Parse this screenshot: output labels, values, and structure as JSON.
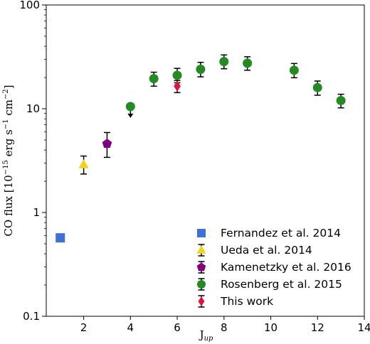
{
  "chart_data": {
    "type": "scatter",
    "title": "",
    "xlabel": "J",
    "xlabel_sub": "up",
    "ylabel": "CO flux [10",
    "ylabel_exp1": "−15",
    "ylabel_mid": " erg s",
    "ylabel_exp2": "−1",
    "ylabel_mid2": " cm",
    "ylabel_exp3": "−2",
    "ylabel_end": "]",
    "xlim": [
      0.4,
      14
    ],
    "ylim": [
      0.1,
      100
    ],
    "yscale": "log",
    "x_ticks": [
      2,
      4,
      6,
      8,
      10,
      12,
      14
    ],
    "y_ticks": [
      0.1,
      1,
      10,
      100
    ],
    "y_tick_labels": [
      "0.1",
      "1",
      "10",
      "100"
    ],
    "grid": false,
    "legend_position": "lower-right",
    "series": [
      {
        "name": "Fernandez et al. 2014",
        "marker": "square",
        "color": "#3d70d8",
        "points": [
          {
            "x": 1,
            "y": 0.57
          }
        ]
      },
      {
        "name": "Ueda et al. 2014",
        "marker": "triangle",
        "color": "#f2d31a",
        "points": [
          {
            "x": 2,
            "y": 2.9,
            "err_low": 0.55,
            "err_high": 0.6
          }
        ]
      },
      {
        "name": "Kamenetzky et al. 2016",
        "marker": "pentagon",
        "color": "#800080",
        "points": [
          {
            "x": 3,
            "y": 4.6,
            "err_low": 1.2,
            "err_high": 1.3
          }
        ]
      },
      {
        "name": "Rosenberg et al. 2015",
        "marker": "circle",
        "color": "#228b22",
        "points": [
          {
            "x": 4,
            "y": 10.5,
            "upper_limit": true
          },
          {
            "x": 5,
            "y": 19.5,
            "err_low": 3,
            "err_high": 3
          },
          {
            "x": 6,
            "y": 21,
            "err_low": 3.2,
            "err_high": 3.5
          },
          {
            "x": 7,
            "y": 24,
            "err_low": 3.7,
            "err_high": 4
          },
          {
            "x": 8,
            "y": 28.5,
            "err_low": 4.2,
            "err_high": 4.5
          },
          {
            "x": 9,
            "y": 27.5,
            "err_low": 4,
            "err_high": 4.2
          },
          {
            "x": 11,
            "y": 23.5,
            "err_low": 3.6,
            "err_high": 3.8
          },
          {
            "x": 12,
            "y": 16,
            "err_low": 2.5,
            "err_high": 2.5
          },
          {
            "x": 13,
            "y": 12,
            "err_low": 1.8,
            "err_high": 1.8
          }
        ]
      },
      {
        "name": "This work",
        "marker": "diamond",
        "color": "#dc143c",
        "points": [
          {
            "x": 6,
            "y": 16.5,
            "err_low": 2.2,
            "err_high": 2.2
          }
        ]
      }
    ]
  }
}
